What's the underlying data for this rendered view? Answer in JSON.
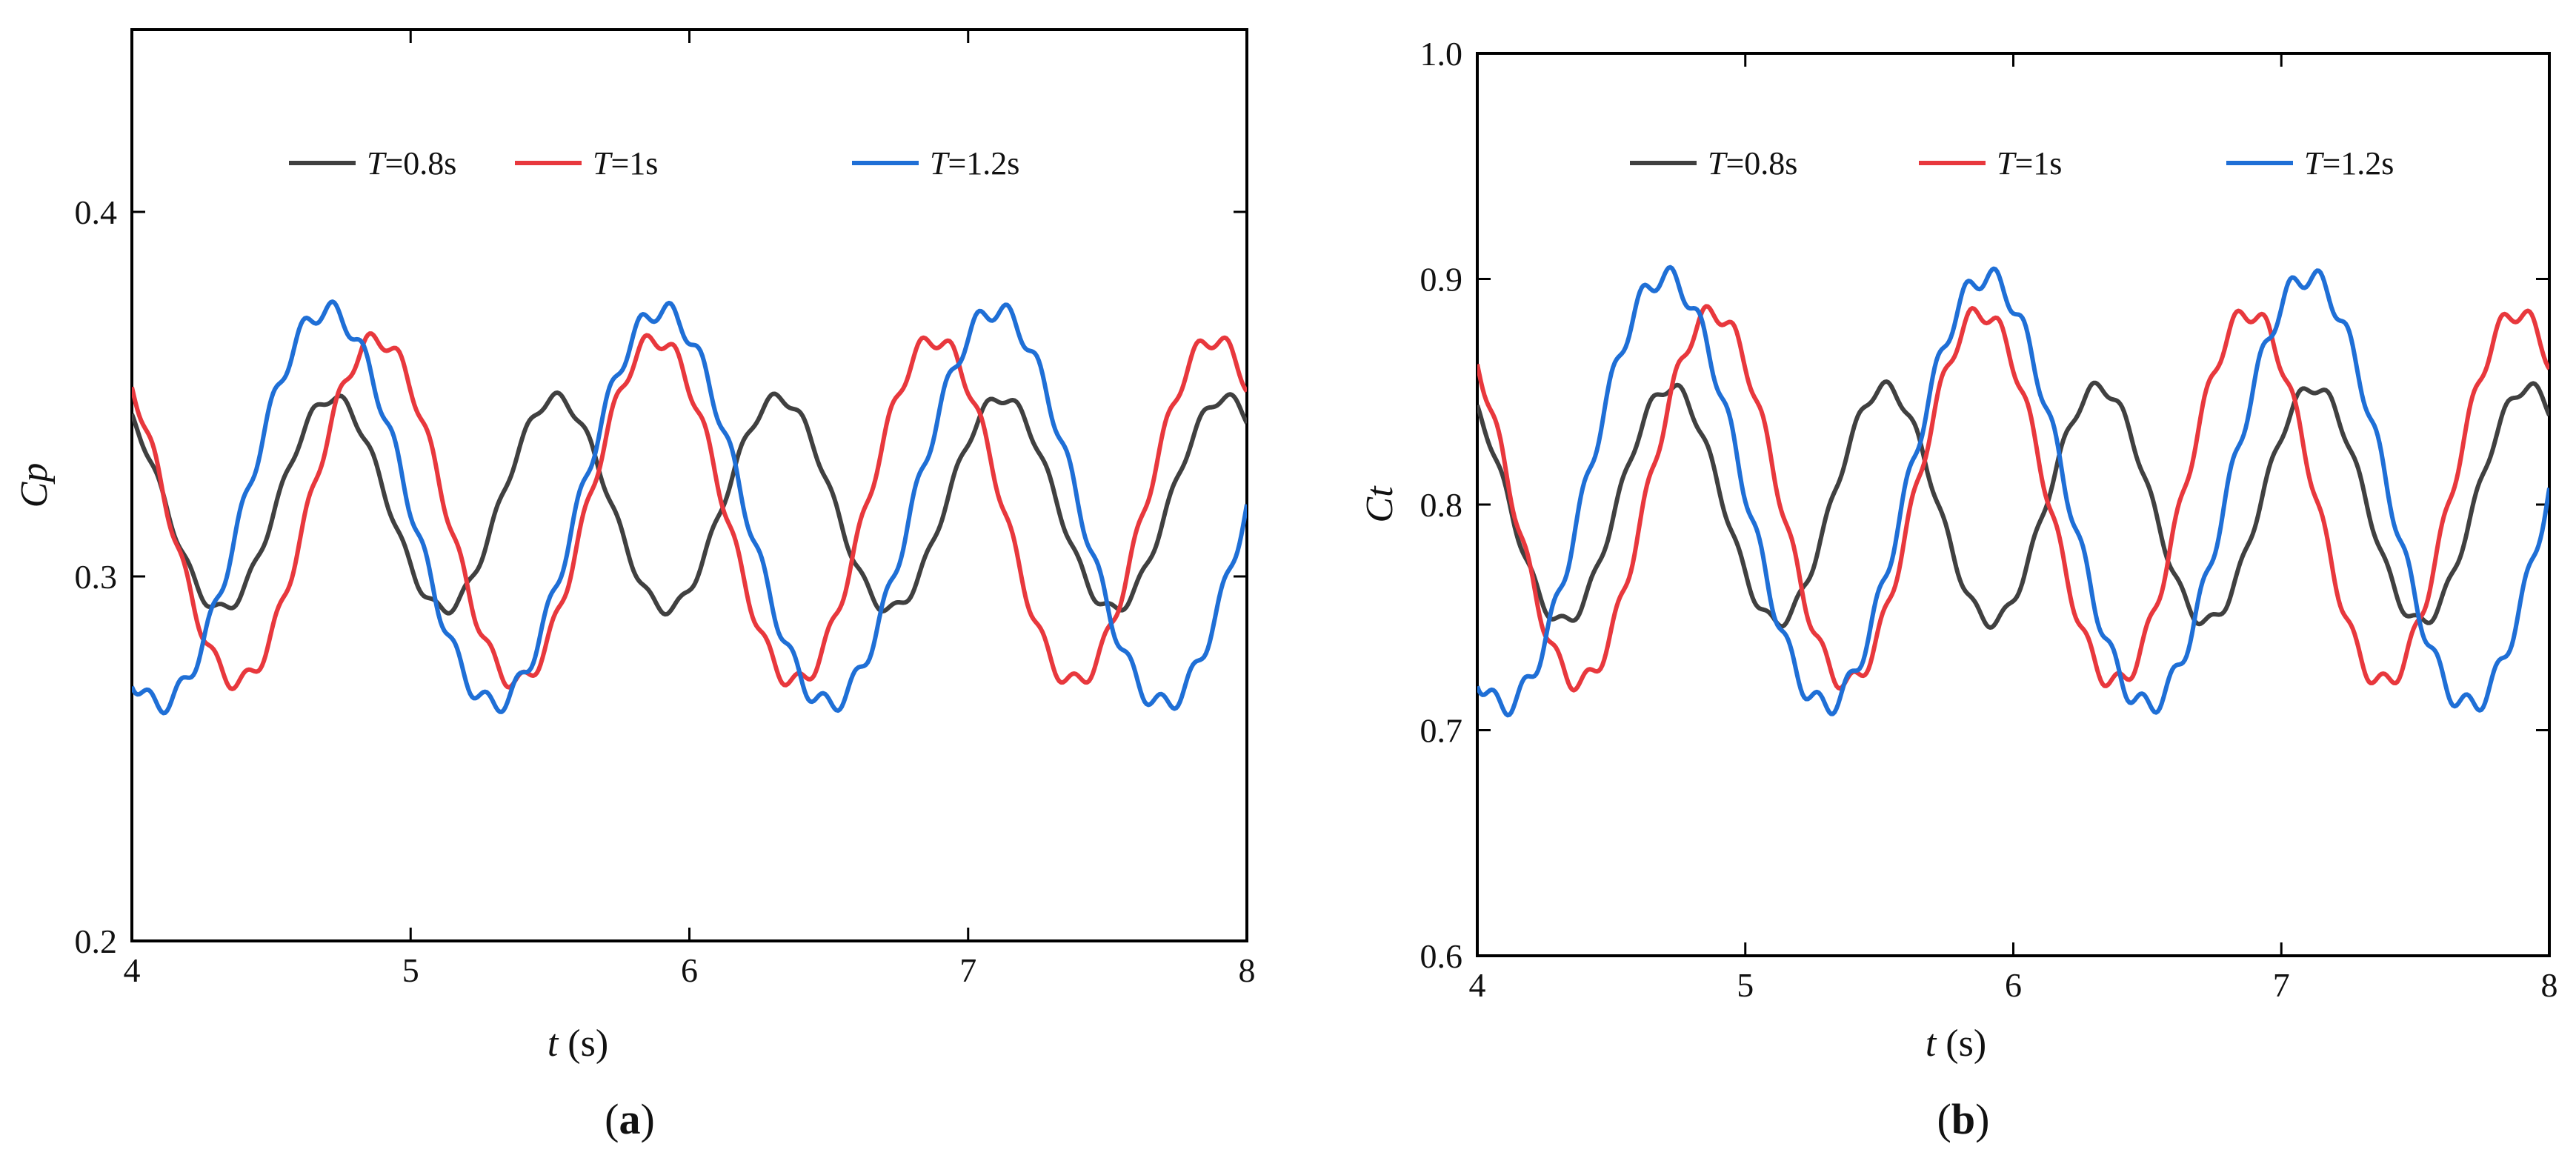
{
  "chart_data": [
    {
      "type": "line",
      "panel_label": "(a)",
      "panel_letter": "a",
      "xlabel_var": "t",
      "xlabel_unit": " (s)",
      "ylabel": "Cp",
      "xlim": [
        4,
        8
      ],
      "ylim": [
        0.2,
        0.45
      ],
      "xticks": [
        4,
        5,
        6,
        7,
        8
      ],
      "yticks": [
        0.2,
        0.3,
        0.4
      ],
      "xtick_labels": [
        "4",
        "5",
        "6",
        "7",
        "8"
      ],
      "ytick_labels": [
        "0.2",
        "0.3",
        "0.4"
      ],
      "legend_position": "top",
      "series": [
        {
          "name_var": "T",
          "name_value": "=0.8s",
          "color": "#404040",
          "period": 0.8,
          "mean": 0.32,
          "amplitude": 0.029,
          "phase_peak": 4.72
        },
        {
          "name_var": "T",
          "name_value": "=1s",
          "color": "#e8383d",
          "period": 1.0,
          "mean": 0.318,
          "amplitude": 0.047,
          "phase_peak": 4.88
        },
        {
          "name_var": "T",
          "name_value": "=1.2s",
          "color": "#1f6fd6",
          "period": 1.2,
          "mean": 0.319,
          "amplitude": 0.054,
          "phase_peak": 4.7
        }
      ]
    },
    {
      "type": "line",
      "panel_label": "(b)",
      "panel_letter": "b",
      "xlabel_var": "t",
      "xlabel_unit": " (s)",
      "ylabel": "Ct",
      "xlim": [
        4,
        8
      ],
      "ylim": [
        0.6,
        1.0
      ],
      "xticks": [
        4,
        5,
        6,
        7,
        8
      ],
      "yticks": [
        0.6,
        0.7,
        0.8,
        0.9,
        1.0
      ],
      "xtick_labels": [
        "4",
        "5",
        "6",
        "7",
        "8"
      ],
      "ytick_labels": [
        "0.6",
        "0.7",
        "0.8",
        "0.9",
        "1.0"
      ],
      "legend_position": "top",
      "series": [
        {
          "name_var": "T",
          "name_value": "=0.8s",
          "color": "#404040",
          "period": 0.8,
          "mean": 0.8,
          "amplitude": 0.052,
          "phase_peak": 4.72
        },
        {
          "name_var": "T",
          "name_value": "=1s",
          "color": "#e8383d",
          "period": 1.0,
          "mean": 0.803,
          "amplitude": 0.082,
          "phase_peak": 4.88
        },
        {
          "name_var": "T",
          "name_value": "=1.2s",
          "color": "#1f6fd6",
          "period": 1.2,
          "mean": 0.806,
          "amplitude": 0.095,
          "phase_peak": 4.7
        }
      ]
    }
  ]
}
